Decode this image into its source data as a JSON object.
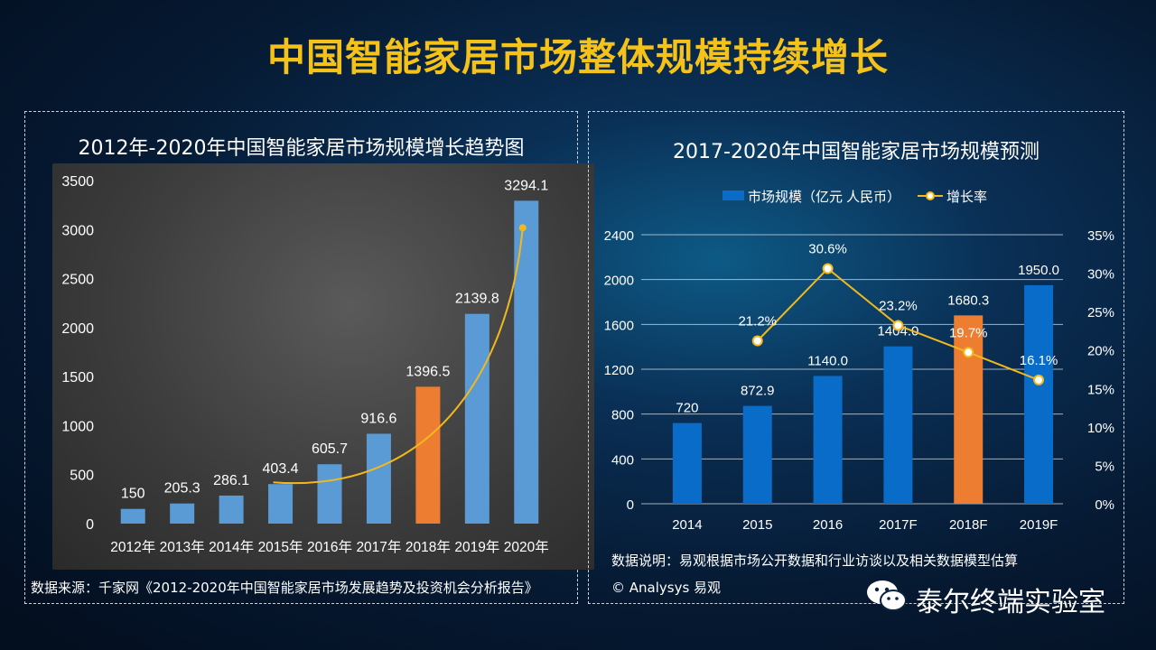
{
  "page": {
    "title": "中国智能家居市场整体规模持续增长"
  },
  "left_panel": {
    "title": "2012年-2020年中国智能家居市场规模增长趋势图",
    "source": "数据来源：千家网《2012-2020年中国智能家居市场发展趋势及投资机会分析报告》"
  },
  "right_panel": {
    "title": "2017-2020年中国智能家居市场规模预测",
    "note": "数据说明：易观根据市场公开数据和行业访谈以及相关数据模型估算",
    "copyright": "© Analysys 易观"
  },
  "watermark": {
    "text": "泰尔终端实验室",
    "icon": "wechat-icon"
  },
  "colors": {
    "title_yellow": "#f5c21a",
    "bar_blue": "#5b9bd5",
    "bar_orange": "#ed7d31",
    "right_bar_blue": "#0a6cc9",
    "line_yellow": "#f3b81b"
  },
  "chart_data": [
    {
      "type": "bar",
      "title": "2012年-2020年中国智能家居市场规模增长趋势图",
      "categories": [
        "2012年",
        "2013年",
        "2014年",
        "2015年",
        "2016年",
        "2017年",
        "2018年",
        "2019年",
        "2020年"
      ],
      "values": [
        150,
        205.3,
        286.1,
        403.4,
        605.7,
        916.6,
        1396.5,
        2139.8,
        3294.1
      ],
      "value_labels": [
        "150",
        "205.3",
        "286.1",
        "403.4",
        "605.7",
        "916.6",
        "1396.5",
        "2139.8",
        "3294.1"
      ],
      "highlight_index": 6,
      "ylim": [
        0,
        3500
      ],
      "yticks": [
        "0",
        "500",
        "1000",
        "1500",
        "2000",
        "2500",
        "3000",
        "3500"
      ],
      "trend_line": "exponential curve from 2015年 to 2020年",
      "grid": false
    },
    {
      "type": "bar+line",
      "title": "2017-2020年中国智能家居市场规模预测",
      "categories": [
        "2014",
        "2015",
        "2016",
        "2017F",
        "2018F",
        "2019F"
      ],
      "series": [
        {
          "name": "市场规模（亿元 人民币）",
          "values": [
            720,
            872.9,
            1140.0,
            1404.0,
            1680.3,
            1950.0
          ],
          "value_labels": [
            "720",
            "872.9",
            "1140.0",
            "1404.0",
            "1680.3",
            "1950.0"
          ],
          "highlight_index": 4
        },
        {
          "name": "增长率",
          "values": [
            null,
            21.2,
            30.6,
            23.2,
            19.7,
            16.1
          ],
          "value_labels": [
            "",
            "21.2%",
            "30.6%",
            "23.2%",
            "19.7%",
            "16.1%"
          ]
        }
      ],
      "ylim_left": [
        0,
        2400
      ],
      "yticks_left": [
        "0",
        "400",
        "800",
        "1200",
        "1600",
        "2000",
        "2400"
      ],
      "ylim_right": [
        0,
        35
      ],
      "yticks_right": [
        "0%",
        "5%",
        "10%",
        "15%",
        "20%",
        "25%",
        "30%",
        "35%"
      ],
      "legend_position": "top",
      "grid": true
    }
  ]
}
